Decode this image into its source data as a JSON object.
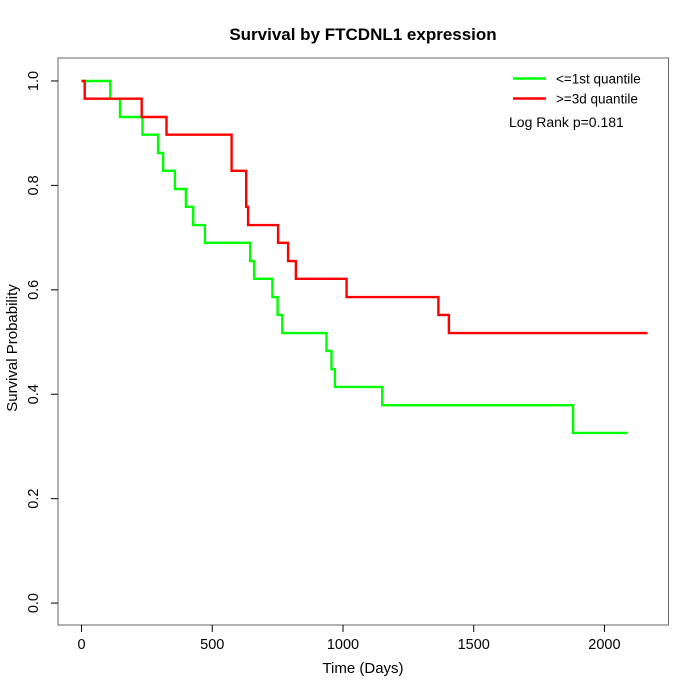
{
  "chart_data": {
    "type": "line",
    "subtype": "kaplan-meier-step",
    "title": "Survival by FTCDNL1 expression",
    "xlabel": "Time (Days)",
    "ylabel": "Survival Probability",
    "annotation": "Log Rank p=0.181",
    "grid": false,
    "legend_position": "top-right",
    "x_ticks": [
      0,
      500,
      1000,
      1500,
      2000
    ],
    "y_ticks": [
      0.0,
      0.2,
      0.4,
      0.6,
      0.8,
      1.0
    ],
    "y_tick_labels": [
      "0.0",
      "0.2",
      "0.4",
      "0.6",
      "0.8",
      "1.0"
    ],
    "xlim": [
      -90,
      2245
    ],
    "ylim": [
      -0.042,
      1.044
    ],
    "axis_color": "#000000",
    "box_color": "#666666",
    "series": [
      {
        "name": "<=1st quantile",
        "color": "#00ff00",
        "end_time": 2089,
        "points": [
          [
            0,
            1.0
          ],
          [
            110,
            0.966
          ],
          [
            147,
            0.931
          ],
          [
            233,
            0.897
          ],
          [
            293,
            0.862
          ],
          [
            312,
            0.828
          ],
          [
            357,
            0.793
          ],
          [
            399,
            0.759
          ],
          [
            427,
            0.724
          ],
          [
            472,
            0.69
          ],
          [
            645,
            0.655
          ],
          [
            660,
            0.621
          ],
          [
            730,
            0.586
          ],
          [
            750,
            0.552
          ],
          [
            768,
            0.517
          ],
          [
            937,
            0.483
          ],
          [
            956,
            0.448
          ],
          [
            969,
            0.414
          ],
          [
            1150,
            0.379
          ],
          [
            1880,
            0.326
          ]
        ]
      },
      {
        "name": ">=3d quantile",
        "color": "#ff0000",
        "end_time": 2165,
        "points": [
          [
            0,
            1.0
          ],
          [
            12,
            0.966
          ],
          [
            230,
            0.931
          ],
          [
            325,
            0.897
          ],
          [
            574,
            0.828
          ],
          [
            630,
            0.759
          ],
          [
            637,
            0.724
          ],
          [
            752,
            0.69
          ],
          [
            790,
            0.655
          ],
          [
            820,
            0.621
          ],
          [
            1014,
            0.586
          ],
          [
            1365,
            0.552
          ],
          [
            1405,
            0.517
          ]
        ]
      }
    ]
  }
}
